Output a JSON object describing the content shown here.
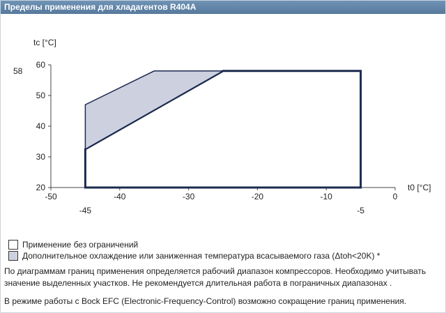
{
  "header": {
    "title": "Пределы применения для хладагентов R404A"
  },
  "chart_data": {
    "type": "area",
    "ylabel": "tc [°C]",
    "xlabel": "t0 [°C]",
    "xlim": [
      -50,
      0
    ],
    "ylim": [
      20,
      60
    ],
    "x_ticks": [
      -50,
      -40,
      -30,
      -20,
      -10,
      0
    ],
    "y_ticks": [
      20,
      30,
      40,
      50,
      60
    ],
    "x_marks": [
      -45,
      -5
    ],
    "y_marks": [
      58
    ],
    "grid": false,
    "series": [
      {
        "name": "Применение без ограничений",
        "points": [
          [
            -45,
            20
          ],
          [
            -45,
            32.5
          ],
          [
            -25,
            58
          ],
          [
            -5,
            58
          ],
          [
            -5,
            20
          ]
        ],
        "fill": "#ffffff",
        "stroke": "#1a2a4f"
      },
      {
        "name": "Дополнительное охлаждение или заниженная температура всасываемого газа (Δtoh<20K) *",
        "points": [
          [
            -45,
            32.5
          ],
          [
            -45,
            47
          ],
          [
            -35,
            58
          ],
          [
            -25,
            58
          ]
        ],
        "fill": "#cdd1df",
        "stroke": "#1a2a4f"
      }
    ]
  },
  "legend": {
    "item1": "Применение без ограничений",
    "item2": "Дополнительное охлаждение или заниженная температура всасываемого газа (Δtoh<20K) *",
    "swatch1_color": "#ffffff",
    "swatch2_color": "#cdd1df"
  },
  "notes": {
    "p1": "По диаграммам границ применения определяется рабочий диапазон компрессоров. Необходимо учитывать значение выделенных участков. Не рекомендуется длительная работа в пограничных диапазонах .",
    "p2": "В режиме работы с Bock EFC (Electronic-Frequency-Control) возможно сокращение границ применения."
  }
}
